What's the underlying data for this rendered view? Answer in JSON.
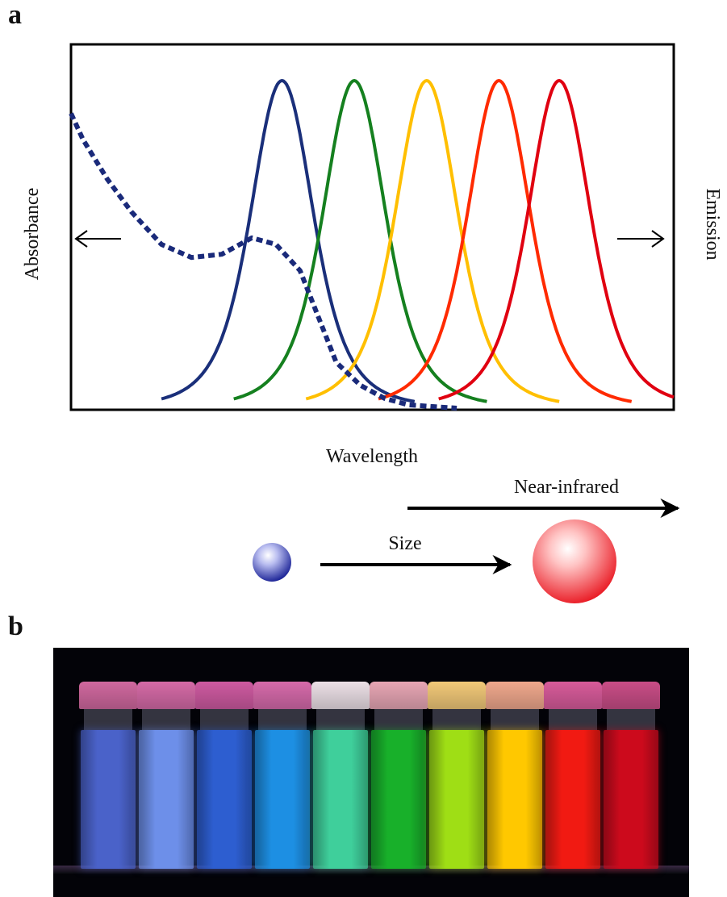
{
  "panels": {
    "a_label": "a",
    "b_label": "b"
  },
  "chart_data": {
    "type": "line",
    "title": "",
    "xlabel": "Wavelength",
    "ylabel_left": "Absorbance",
    "ylabel_right": "Emission",
    "x_range": [
      0,
      100
    ],
    "y_range": [
      0,
      1
    ],
    "grid": false,
    "absorbance": {
      "style": "dotted",
      "color": "#1a2a7a",
      "x": [
        0,
        2,
        6,
        10,
        15,
        20,
        25,
        30,
        34,
        38,
        41,
        44,
        48,
        52,
        56,
        60,
        64
      ],
      "y": [
        0.9,
        0.82,
        0.7,
        0.6,
        0.5,
        0.46,
        0.47,
        0.52,
        0.5,
        0.42,
        0.28,
        0.14,
        0.07,
        0.03,
        0.01,
        0.005,
        0.0
      ]
    },
    "emission": [
      {
        "color": "#1a2f7a",
        "peak_x": 35,
        "peak_y": 1.0,
        "width": 5.2,
        "x_start": 15,
        "x_end": 57
      },
      {
        "color": "#15801f",
        "peak_x": 47,
        "peak_y": 1.0,
        "width": 5.2,
        "x_start": 27,
        "x_end": 69
      },
      {
        "color": "#ffbf00",
        "peak_x": 59,
        "peak_y": 1.0,
        "width": 5.2,
        "x_start": 39,
        "x_end": 81
      },
      {
        "color": "#ff2a00",
        "peak_x": 71,
        "peak_y": 1.0,
        "width": 5.2,
        "x_start": 51,
        "x_end": 93
      },
      {
        "color": "#e00010",
        "peak_x": 81,
        "peak_y": 1.0,
        "width": 5.2,
        "x_start": 61,
        "x_end": 100
      }
    ],
    "annotations": {
      "near_infrared": "Near-infrared",
      "size": "Size"
    }
  },
  "vials": {
    "colors": [
      {
        "cap": "#d0689e",
        "body": "#4a62c9"
      },
      {
        "cap": "#d56aa6",
        "body": "#6d8fe9"
      },
      {
        "cap": "#ce5aa0",
        "body": "#2d5ed0"
      },
      {
        "cap": "#d66aaa",
        "body": "#1d8fe3"
      },
      {
        "cap": "#ece0e6",
        "body": "#3fcf9b"
      },
      {
        "cap": "#e7a6b4",
        "body": "#18b02a"
      },
      {
        "cap": "#f2c978",
        "body": "#9fde15"
      },
      {
        "cap": "#f0a88c",
        "body": "#ffc800"
      },
      {
        "cap": "#d85b9a",
        "body": "#f11a12"
      },
      {
        "cap": "#c94d86",
        "body": "#cc0a1c"
      }
    ]
  }
}
